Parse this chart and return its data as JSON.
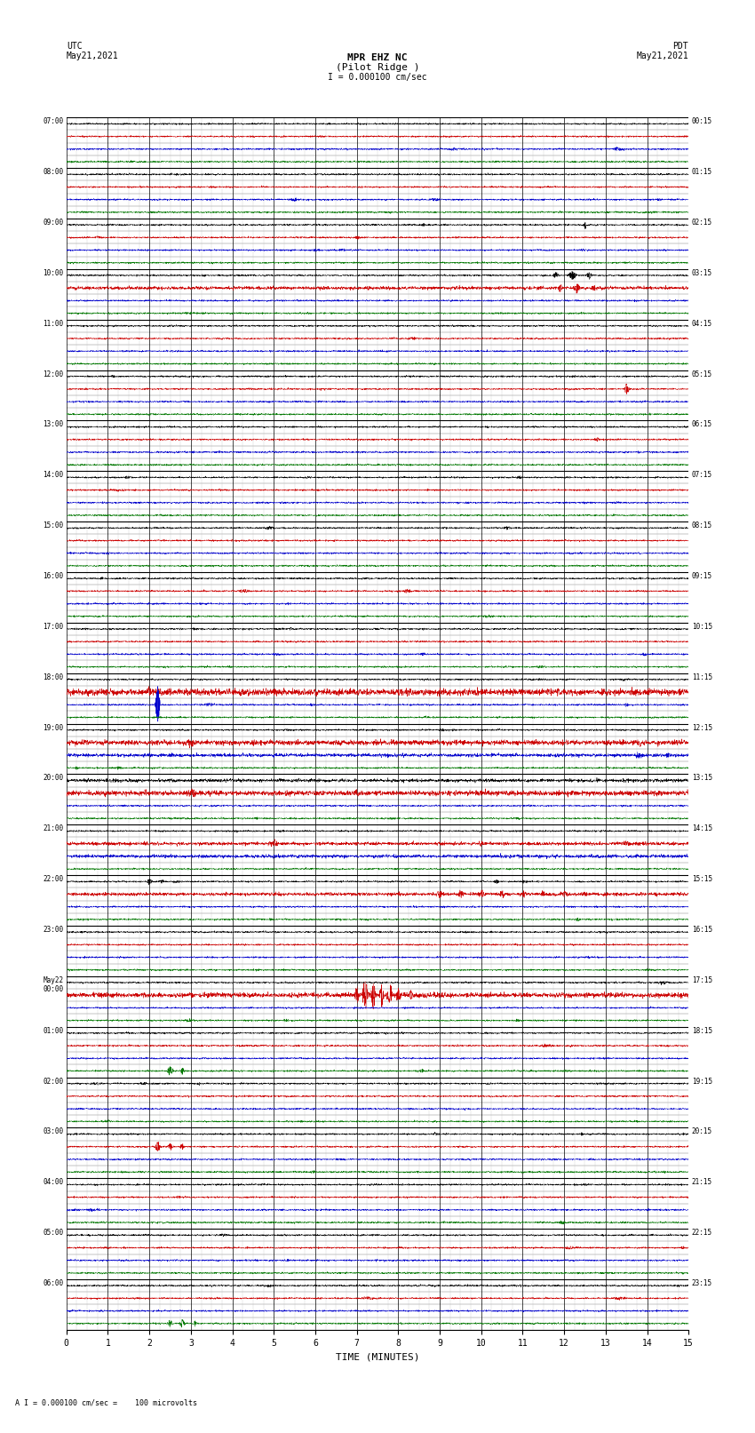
{
  "title_line1": "MPR EHZ NC",
  "title_line2": "(Pilot Ridge )",
  "title_line3": "I = 0.000100 cm/sec",
  "left_header_line1": "UTC",
  "left_header_line2": "May21,2021",
  "right_header_line1": "PDT",
  "right_header_line2": "May21,2021",
  "footer": "A I = 0.000100 cm/sec =    100 microvolts",
  "xlabel": "TIME (MINUTES)",
  "utc_labels": [
    "07:00",
    "08:00",
    "09:00",
    "10:00",
    "11:00",
    "12:00",
    "13:00",
    "14:00",
    "15:00",
    "16:00",
    "17:00",
    "18:00",
    "19:00",
    "20:00",
    "21:00",
    "22:00",
    "23:00",
    "May22\n00:00",
    "01:00",
    "02:00",
    "03:00",
    "04:00",
    "05:00",
    "06:00"
  ],
  "pdt_labels": [
    "00:15",
    "01:15",
    "02:15",
    "03:15",
    "04:15",
    "05:15",
    "06:15",
    "07:15",
    "08:15",
    "09:15",
    "10:15",
    "11:15",
    "12:15",
    "13:15",
    "14:15",
    "15:15",
    "16:15",
    "17:15",
    "18:15",
    "19:15",
    "20:15",
    "21:15",
    "22:15",
    "23:15"
  ],
  "num_rows": 24,
  "xmin": 0,
  "xmax": 15,
  "bg_color": "#ffffff",
  "trace_color_black": "#000000",
  "trace_color_red": "#cc0000",
  "trace_color_blue": "#0000cc",
  "trace_color_green": "#007700",
  "grid_color": "#777777",
  "grid_color_minor": "#bbbbbb",
  "seed": 12345
}
